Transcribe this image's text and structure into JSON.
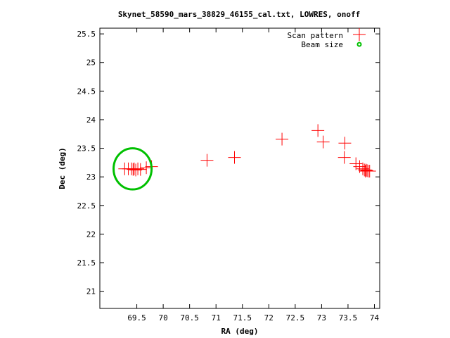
{
  "chart_data": {
    "type": "scatter",
    "title": "Skynet_58590_mars_38829_46155_cal.txt, LOWRES, onoff",
    "xlabel": "RA (deg)",
    "ylabel": "Dec (deg)",
    "xlim": [
      68.8,
      74.1
    ],
    "ylim": [
      20.7,
      25.6
    ],
    "xticks": [
      "69.5",
      "70",
      "70.5",
      "71",
      "71.5",
      "72",
      "72.5",
      "73",
      "73.5",
      "74"
    ],
    "yticks": [
      "21",
      "21.5",
      "22",
      "22.5",
      "23",
      "23.5",
      "24",
      "24.5",
      "25",
      "25.5"
    ],
    "grid": false,
    "legend_position": "top-right",
    "series": [
      {
        "name": "Scan pattern",
        "marker": "plus",
        "color": "#ff0000",
        "points": [
          [
            69.27,
            23.14
          ],
          [
            69.34,
            23.14
          ],
          [
            69.4,
            23.14
          ],
          [
            69.43,
            23.13
          ],
          [
            69.45,
            23.14
          ],
          [
            69.48,
            23.12
          ],
          [
            69.52,
            23.14
          ],
          [
            69.57,
            23.13
          ],
          [
            69.68,
            23.16
          ],
          [
            69.78,
            23.18
          ],
          [
            70.83,
            23.29
          ],
          [
            71.35,
            23.34
          ],
          [
            72.25,
            23.66
          ],
          [
            72.93,
            23.81
          ],
          [
            73.03,
            23.61
          ],
          [
            73.44,
            23.59
          ],
          [
            73.43,
            23.34
          ],
          [
            73.65,
            23.23
          ],
          [
            73.72,
            23.18
          ],
          [
            73.78,
            23.14
          ],
          [
            73.81,
            23.12
          ],
          [
            73.83,
            23.1
          ],
          [
            73.84,
            23.12
          ],
          [
            73.86,
            23.11
          ],
          [
            73.88,
            23.1
          ],
          [
            73.91,
            23.1
          ]
        ]
      },
      {
        "name": "Beam size",
        "marker": "circle",
        "color": "#00c000",
        "center": [
          69.42,
          23.14
        ],
        "radius_deg": 0.36
      }
    ]
  }
}
